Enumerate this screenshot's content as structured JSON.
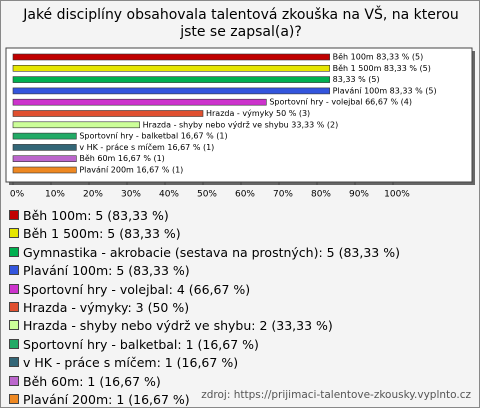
{
  "chart_data": {
    "type": "bar",
    "orientation": "horizontal",
    "title": "Jaké disciplíny obsahovala talentová zkouška na VŠ, na kterou jste se zapsal(a)?",
    "values": [
      83.33,
      83.33,
      83.33,
      83.33,
      66.67,
      50,
      33.33,
      16.67,
      16.67,
      16.67,
      16.67
    ],
    "value_labels": [
      "Běh 100m 83,33 % (5)",
      "Běh 1 500m 83,33 % (5)",
      "83,33 % (5)",
      "Plavání 100m 83,33 % (5)",
      "Sportovní hry - volejbal 66,67 % (4)",
      "Hrazda - výmyky 50 % (3)",
      "Hrazda - shyby nebo výdrž ve shybu 33,33 % (2)",
      "Sportovní hry - balketbal 16,67 % (1)",
      "v HK - práce s míčem 16,67 % (1)",
      "Běh 60m 16,67 % (1)",
      "Plavání 200m 16,67 % (1)"
    ],
    "legend": [
      "Běh 100m: 5 (83,33 %)",
      "Běh 1 500m: 5 (83,33 %)",
      "Gymnastika - akrobacie (sestava na prostných): 5 (83,33 %)",
      "Plavání 100m: 5 (83,33 %)",
      "Sportovní hry - volejbal: 4 (66,67 %)",
      "Hrazda - výmyky: 3 (50 %)",
      "Hrazda - shyby nebo výdrž ve shybu: 2 (33,33 %)",
      "Sportovní hry - balketbal: 1 (16,67 %)",
      "v HK - práce s míčem: 1 (16,67 %)",
      "Běh 60m: 1 (16,67 %)",
      "Plavání 200m: 1 (16,67 %)"
    ],
    "colors": [
      "#c00000",
      "#e6e600",
      "#00b050",
      "#3355dd",
      "#cc33cc",
      "#e05030",
      "#ccff99",
      "#22aa66",
      "#336677",
      "#bb66cc",
      "#ee8822"
    ],
    "xlim": [
      0,
      100
    ],
    "xticks": [
      {
        "value": 0,
        "label": "0%"
      },
      {
        "value": 10,
        "label": "10%"
      },
      {
        "value": 20,
        "label": "20%"
      },
      {
        "value": 30,
        "label": "30%"
      },
      {
        "value": 40,
        "label": "40%"
      },
      {
        "value": 50,
        "label": "50%"
      },
      {
        "value": 60,
        "label": "60%"
      },
      {
        "value": 70,
        "label": "70%"
      },
      {
        "value": 80,
        "label": "80%"
      },
      {
        "value": 90,
        "label": "90%"
      },
      {
        "value": 100,
        "label": "100%"
      }
    ],
    "source": "zdroj: https://prijimaci-talentove-zkousky.vyplnto.cz"
  }
}
